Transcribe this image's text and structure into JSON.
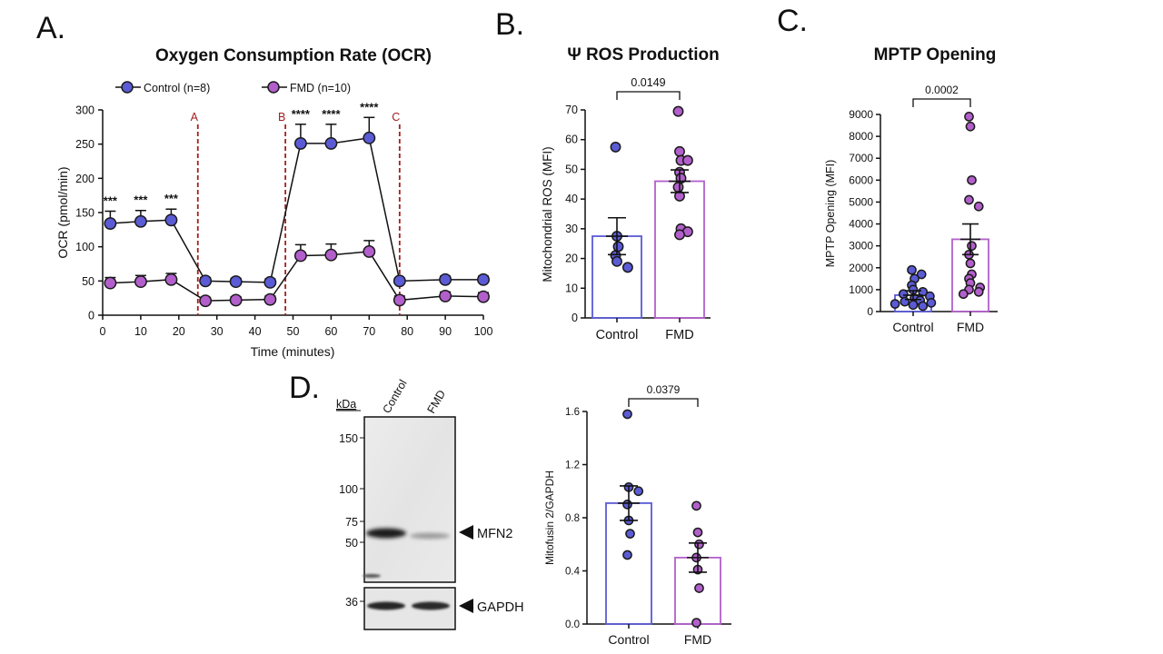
{
  "panels": {
    "a": "A.",
    "b": "B.",
    "c": "C.",
    "d": "D."
  },
  "colors": {
    "control": "#5B5BD6",
    "fmd": "#B25FCC",
    "edge": "#1a1a1a",
    "marker": "#A31F1F"
  },
  "chart_data": [
    {
      "id": "ocr",
      "type": "line",
      "title": "Oxygen Consumption Rate (OCR)",
      "xlabel": "Time (minutes)",
      "ylabel": "OCR (pmol/min)",
      "xlim": [
        0,
        100
      ],
      "ylim": [
        0,
        300
      ],
      "xticks": [
        0,
        10,
        20,
        30,
        40,
        50,
        60,
        70,
        80,
        90,
        100
      ],
      "yticks": [
        0,
        50,
        100,
        150,
        200,
        250,
        300
      ],
      "legend_position": "top",
      "series": [
        {
          "name": "Control (n=8)",
          "color": "#5B5BD6",
          "x": [
            2,
            10,
            18,
            27,
            35,
            44,
            52,
            60,
            70,
            78,
            90,
            100
          ],
          "y": [
            134,
            137,
            139,
            50,
            49,
            48,
            251,
            251,
            259,
            50,
            52,
            52
          ],
          "error": [
            18,
            16,
            16,
            5,
            5,
            5,
            28,
            28,
            30,
            4,
            5,
            5
          ]
        },
        {
          "name": "FMD (n=10)",
          "color": "#B25FCC",
          "x": [
            2,
            10,
            18,
            27,
            35,
            44,
            52,
            60,
            70,
            78,
            90,
            100
          ],
          "y": [
            47,
            49,
            52,
            21,
            22,
            23,
            87,
            88,
            93,
            22,
            28,
            27
          ],
          "error": [
            8,
            9,
            9,
            5,
            5,
            5,
            16,
            16,
            16,
            6,
            6,
            6
          ]
        }
      ],
      "injection_lines": [
        {
          "label": "A",
          "x": 25
        },
        {
          "label": "B",
          "x": 48
        },
        {
          "label": "C",
          "x": 78
        }
      ],
      "significance": [
        {
          "x": 2,
          "label": "***"
        },
        {
          "x": 10,
          "label": "***"
        },
        {
          "x": 18,
          "label": "***"
        },
        {
          "x": 52,
          "label": "****"
        },
        {
          "x": 60,
          "label": "****"
        },
        {
          "x": 70,
          "label": "****"
        }
      ]
    },
    {
      "id": "ros",
      "type": "bar",
      "title": "Ψ ROS Production",
      "ylabel": "Mitochondrial ROS (MFI)",
      "categories": [
        "Control",
        "FMD"
      ],
      "ylim": [
        0,
        70
      ],
      "yticks": [
        0,
        10,
        20,
        30,
        40,
        50,
        60,
        70
      ],
      "means": [
        27.5,
        46
      ],
      "sem": [
        6.2,
        3.8
      ],
      "points": [
        [
          57.5,
          27.5,
          24,
          21,
          19,
          17
        ],
        [
          69.5,
          56,
          53,
          53,
          49,
          47,
          44,
          41,
          30,
          29,
          28
        ]
      ],
      "pvalue": "0.0149"
    },
    {
      "id": "mptp",
      "type": "bar",
      "title": "MPTP Opening",
      "ylabel": "MPTP Opening (MFI)",
      "categories": [
        "Control",
        "FMD"
      ],
      "ylim": [
        0,
        9000
      ],
      "yticks": [
        0,
        1000,
        2000,
        3000,
        4000,
        5000,
        6000,
        7000,
        8000,
        9000
      ],
      "means": [
        750,
        3300
      ],
      "sem": [
        200,
        700
      ],
      "points": [
        [
          1900,
          1700,
          1500,
          1200,
          1000,
          900,
          800,
          700,
          600,
          500,
          450,
          400,
          350,
          300,
          250
        ],
        [
          8900,
          8450,
          6000,
          5100,
          4800,
          3000,
          2600,
          2200,
          1700,
          1500,
          1300,
          1100,
          1000,
          900,
          800
        ]
      ],
      "pvalue": "0.0002"
    },
    {
      "id": "mfn2",
      "type": "bar",
      "ylabel": "Mitofusin 2/GAPDH",
      "categories": [
        "Control",
        "FMD"
      ],
      "ylim": [
        0,
        1.6
      ],
      "yticks": [
        0.0,
        0.4,
        0.8,
        1.2,
        1.6
      ],
      "means": [
        0.91,
        0.5
      ],
      "sem": [
        0.13,
        0.11
      ],
      "points": [
        [
          1.58,
          1.03,
          1.0,
          0.9,
          0.78,
          0.68,
          0.52
        ],
        [
          0.89,
          0.69,
          0.6,
          0.5,
          0.41,
          0.27,
          0.01
        ]
      ],
      "pvalue": "0.0379"
    }
  ],
  "blot": {
    "unit_label": "kDa",
    "lanes": [
      "Control",
      "FMD"
    ],
    "markers": [
      "150",
      "100",
      "75",
      "50",
      "36"
    ],
    "bands": [
      "MFN2",
      "GAPDH"
    ]
  }
}
